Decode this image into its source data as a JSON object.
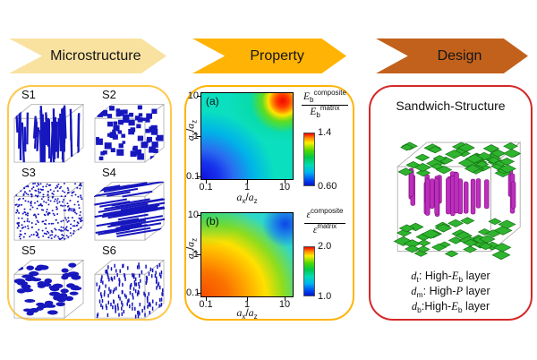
{
  "colors": {
    "arrow_microstructure": "#F9E2A0",
    "arrow_property": "#FFB405",
    "arrow_design": "#C2611C",
    "box_microstructure_border": "#FFC84A",
    "box_property_border": "#FFB405",
    "box_design_border": "#D52828",
    "filler_blue": "#1717BE",
    "platelet_green": "#2EB42E",
    "platelet_green_dark": "#157015",
    "rod_magenta": "#BC2EBC",
    "rod_magenta_dark": "#7E107E",
    "wireframe_gray": "#ADADAD"
  },
  "arrows": [
    {
      "label": "Microstructure"
    },
    {
      "label": "Property"
    },
    {
      "label": "Design"
    }
  ],
  "microstructure_panel": {
    "samples": [
      {
        "label": "S1",
        "pattern": "vertical-rods"
      },
      {
        "label": "S2",
        "pattern": "cubes"
      },
      {
        "label": "S3",
        "pattern": "dots"
      },
      {
        "label": "S4",
        "pattern": "horizontal-rods"
      },
      {
        "label": "S5",
        "pattern": "platelets"
      },
      {
        "label": "S6",
        "pattern": "short-rods"
      }
    ]
  },
  "property_panel": {
    "axis": {
      "a": "a",
      "x": "x",
      "y": "y",
      "z": "z",
      "slash": "/"
    },
    "plot_a": {
      "tag": "(a)",
      "xticks": [
        "0.1",
        "1",
        "10"
      ],
      "yticks": [
        "10",
        "1",
        "0.1"
      ],
      "cb_max": "1.4",
      "cb_min": "0.60"
    },
    "plot_b": {
      "tag": "(b)",
      "xticks": [
        "0.1",
        "1",
        "10"
      ],
      "yticks": [
        "10",
        "1",
        "0.1"
      ],
      "cb_max": "2.0",
      "cb_min": "1.0"
    },
    "cb_a_label": {
      "sym": "E",
      "sub": "b",
      "num_sup": "composite",
      "den_sup": "matrix"
    },
    "cb_b_label": {
      "sym": "ε",
      "num_sup": "composite",
      "den_sup": "matrix"
    }
  },
  "design_panel": {
    "title": "Sandwich-Structure",
    "legend": [
      {
        "d": "d",
        "dsub": "t",
        "mid": ": High-",
        "v": "E",
        "vsub": "b",
        "tail": " layer"
      },
      {
        "d": "d",
        "dsub": "m",
        "mid": ": High-",
        "v": "P",
        "vsub": "",
        "tail": " layer"
      },
      {
        "d": "d",
        "dsub": "b",
        "mid": ":High-",
        "v": "E",
        "vsub": "b",
        "tail": " layer"
      }
    ]
  },
  "chart_data": [
    {
      "type": "heatmap",
      "tag": "(a)",
      "xlabel": "a_x/a_z",
      "ylabel": "a_y/a_z",
      "x_scale": "log",
      "y_scale": "log",
      "x_range": [
        0.1,
        10
      ],
      "y_range": [
        0.1,
        10
      ],
      "x_ticks": [
        0.1,
        1,
        10
      ],
      "y_ticks": [
        0.1,
        1,
        10
      ],
      "colorbar_label": "E_b^composite / E_b^matrix",
      "colorbar_range": [
        0.6,
        1.4
      ],
      "legend_position": "right",
      "description": "Breakdown-strength ratio map: minimum ~0.60 (blue) at a_x/a_z=0.1, a_y/a_z=0.1; ~1.0 (cyan/green) across mid field; maximum ~1.4 (red spot) at a_x/a_z=10, a_y/a_z=10."
    },
    {
      "type": "heatmap",
      "tag": "(b)",
      "xlabel": "a_x/a_z",
      "ylabel": "a_y/a_z",
      "x_scale": "log",
      "y_scale": "log",
      "x_range": [
        0.1,
        10
      ],
      "y_range": [
        0.1,
        10
      ],
      "x_ticks": [
        0.1,
        1,
        10
      ],
      "y_ticks": [
        0.1,
        1,
        10
      ],
      "colorbar_label": "ε^composite / ε^matrix",
      "colorbar_range": [
        1.0,
        2.0
      ],
      "legend_position": "right",
      "description": "Permittivity ratio map: maximum ~2.0 (orange/red) at a_x/a_z=0.1, a_y/a_z=0.1, decreasing diagonally through yellow/green to ~1.0 (blue spot) near a_x/a_z=10, a_y/a_z=10."
    }
  ]
}
